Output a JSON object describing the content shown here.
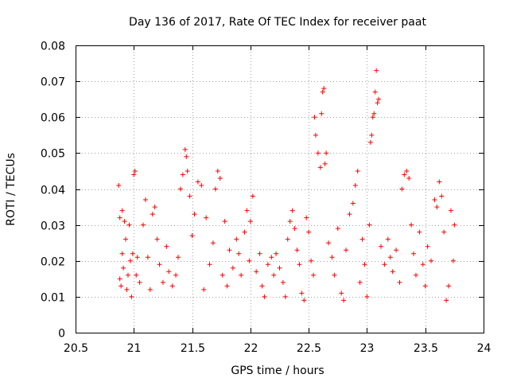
{
  "chart_data": {
    "type": "scatter",
    "title": "Day 136 of 2017, Rate Of TEC Index for receiver paat",
    "xlabel": "GPS time / hours",
    "ylabel": "ROTI / TECUs",
    "xlim": [
      20.5,
      24
    ],
    "ylim": [
      0,
      0.08
    ],
    "xticks": [
      "20.5",
      "21",
      "21.5",
      "22",
      "22.5",
      "23",
      "23.5",
      "24"
    ],
    "yticks": [
      "0",
      "0.01",
      "0.02",
      "0.03",
      "0.04",
      "0.05",
      "0.06",
      "0.07",
      "0.08"
    ],
    "grid": true,
    "marker": "plus",
    "color": "#ff0000",
    "series": [
      {
        "name": "ROTI",
        "points": [
          [
            20.87,
            0.041
          ],
          [
            20.88,
            0.032
          ],
          [
            20.88,
            0.015
          ],
          [
            20.89,
            0.013
          ],
          [
            20.9,
            0.034
          ],
          [
            20.9,
            0.022
          ],
          [
            20.91,
            0.018
          ],
          [
            20.92,
            0.031
          ],
          [
            20.93,
            0.026
          ],
          [
            20.94,
            0.012
          ],
          [
            20.95,
            0.016
          ],
          [
            20.96,
            0.03
          ],
          [
            20.97,
            0.02
          ],
          [
            20.98,
            0.01
          ],
          [
            20.99,
            0.022
          ],
          [
            21.0,
            0.044
          ],
          [
            21.01,
            0.045
          ],
          [
            21.02,
            0.016
          ],
          [
            21.03,
            0.021
          ],
          [
            21.05,
            0.014
          ],
          [
            21.08,
            0.03
          ],
          [
            21.1,
            0.037
          ],
          [
            21.12,
            0.021
          ],
          [
            21.14,
            0.012
          ],
          [
            21.16,
            0.033
          ],
          [
            21.18,
            0.035
          ],
          [
            21.2,
            0.026
          ],
          [
            21.22,
            0.019
          ],
          [
            21.25,
            0.014
          ],
          [
            21.28,
            0.024
          ],
          [
            21.3,
            0.017
          ],
          [
            21.33,
            0.013
          ],
          [
            21.36,
            0.016
          ],
          [
            21.38,
            0.021
          ],
          [
            21.4,
            0.04
          ],
          [
            21.42,
            0.044
          ],
          [
            21.44,
            0.051
          ],
          [
            21.45,
            0.049
          ],
          [
            21.46,
            0.045
          ],
          [
            21.48,
            0.038
          ],
          [
            21.5,
            0.027
          ],
          [
            21.52,
            0.033
          ],
          [
            21.55,
            0.042
          ],
          [
            21.58,
            0.041
          ],
          [
            21.6,
            0.012
          ],
          [
            21.62,
            0.032
          ],
          [
            21.65,
            0.019
          ],
          [
            21.68,
            0.025
          ],
          [
            21.7,
            0.04
          ],
          [
            21.72,
            0.045
          ],
          [
            21.74,
            0.043
          ],
          [
            21.76,
            0.016
          ],
          [
            21.78,
            0.031
          ],
          [
            21.8,
            0.013
          ],
          [
            21.82,
            0.023
          ],
          [
            21.85,
            0.018
          ],
          [
            21.88,
            0.026
          ],
          [
            21.9,
            0.022
          ],
          [
            21.92,
            0.016
          ],
          [
            21.95,
            0.028
          ],
          [
            21.97,
            0.034
          ],
          [
            21.99,
            0.02
          ],
          [
            22.0,
            0.031
          ],
          [
            22.02,
            0.038
          ],
          [
            22.05,
            0.017
          ],
          [
            22.08,
            0.022
          ],
          [
            22.1,
            0.013
          ],
          [
            22.12,
            0.01
          ],
          [
            22.15,
            0.019
          ],
          [
            22.18,
            0.021
          ],
          [
            22.2,
            0.016
          ],
          [
            22.22,
            0.022
          ],
          [
            22.25,
            0.018
          ],
          [
            22.28,
            0.014
          ],
          [
            22.3,
            0.01
          ],
          [
            22.32,
            0.026
          ],
          [
            22.34,
            0.031
          ],
          [
            22.36,
            0.034
          ],
          [
            22.38,
            0.029
          ],
          [
            22.4,
            0.023
          ],
          [
            22.42,
            0.019
          ],
          [
            22.44,
            0.011
          ],
          [
            22.46,
            0.009
          ],
          [
            22.48,
            0.032
          ],
          [
            22.5,
            0.028
          ],
          [
            22.52,
            0.02
          ],
          [
            22.54,
            0.016
          ],
          [
            22.55,
            0.06
          ],
          [
            22.56,
            0.055
          ],
          [
            22.58,
            0.05
          ],
          [
            22.6,
            0.046
          ],
          [
            22.61,
            0.061
          ],
          [
            22.62,
            0.067
          ],
          [
            22.63,
            0.068
          ],
          [
            22.64,
            0.047
          ],
          [
            22.65,
            0.05
          ],
          [
            22.67,
            0.025
          ],
          [
            22.7,
            0.021
          ],
          [
            22.72,
            0.016
          ],
          [
            22.75,
            0.029
          ],
          [
            22.78,
            0.011
          ],
          [
            22.8,
            0.009
          ],
          [
            22.82,
            0.023
          ],
          [
            22.85,
            0.033
          ],
          [
            22.88,
            0.036
          ],
          [
            22.9,
            0.041
          ],
          [
            22.92,
            0.045
          ],
          [
            22.94,
            0.014
          ],
          [
            22.96,
            0.026
          ],
          [
            22.98,
            0.019
          ],
          [
            23.0,
            0.01
          ],
          [
            23.02,
            0.03
          ],
          [
            23.03,
            0.053
          ],
          [
            23.04,
            0.055
          ],
          [
            23.05,
            0.06
          ],
          [
            23.06,
            0.061
          ],
          [
            23.07,
            0.067
          ],
          [
            23.08,
            0.073
          ],
          [
            23.09,
            0.064
          ],
          [
            23.1,
            0.065
          ],
          [
            23.12,
            0.024
          ],
          [
            23.15,
            0.019
          ],
          [
            23.18,
            0.026
          ],
          [
            23.2,
            0.021
          ],
          [
            23.22,
            0.017
          ],
          [
            23.25,
            0.023
          ],
          [
            23.28,
            0.014
          ],
          [
            23.3,
            0.04
          ],
          [
            23.32,
            0.044
          ],
          [
            23.34,
            0.045
          ],
          [
            23.36,
            0.043
          ],
          [
            23.38,
            0.03
          ],
          [
            23.4,
            0.022
          ],
          [
            23.42,
            0.016
          ],
          [
            23.45,
            0.028
          ],
          [
            23.48,
            0.019
          ],
          [
            23.5,
            0.013
          ],
          [
            23.52,
            0.024
          ],
          [
            23.55,
            0.02
          ],
          [
            23.58,
            0.037
          ],
          [
            23.6,
            0.035
          ],
          [
            23.62,
            0.042
          ],
          [
            23.64,
            0.038
          ],
          [
            23.66,
            0.028
          ],
          [
            23.68,
            0.009
          ],
          [
            23.7,
            0.013
          ],
          [
            23.72,
            0.034
          ],
          [
            23.74,
            0.02
          ],
          [
            23.75,
            0.03
          ]
        ]
      }
    ]
  }
}
